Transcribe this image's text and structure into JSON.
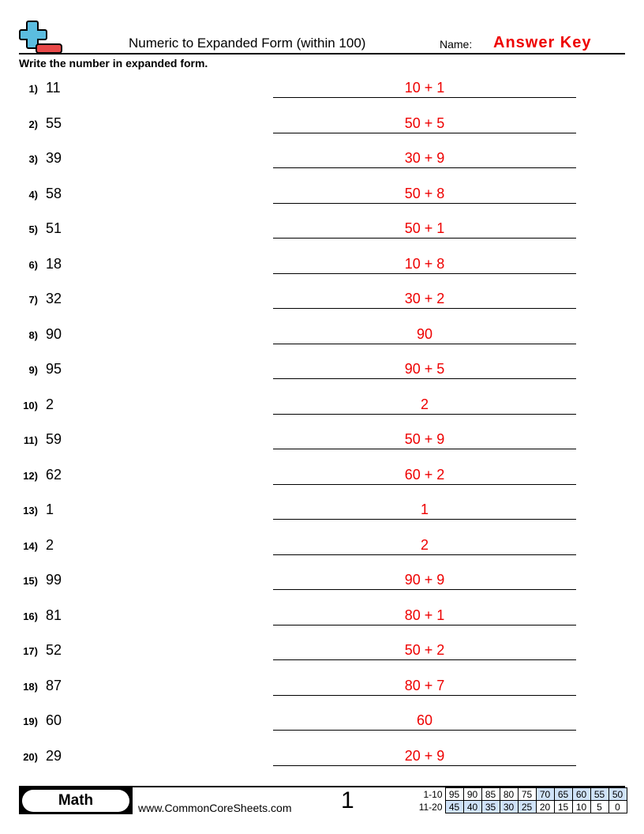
{
  "header": {
    "title": "Numeric to Expanded Form (within 100)",
    "name_label": "Name:",
    "answer_key": "Answer Key",
    "logo": "plus-minus-logo"
  },
  "instructions": "Write the number in expanded form.",
  "problems": [
    {
      "n": "1)",
      "q": "11",
      "a": "10 + 1"
    },
    {
      "n": "2)",
      "q": "55",
      "a": "50 + 5"
    },
    {
      "n": "3)",
      "q": "39",
      "a": "30 + 9"
    },
    {
      "n": "4)",
      "q": "58",
      "a": "50 + 8"
    },
    {
      "n": "5)",
      "q": "51",
      "a": "50 + 1"
    },
    {
      "n": "6)",
      "q": "18",
      "a": "10 + 8"
    },
    {
      "n": "7)",
      "q": "32",
      "a": "30 + 2"
    },
    {
      "n": "8)",
      "q": "90",
      "a": "90"
    },
    {
      "n": "9)",
      "q": "95",
      "a": "90 + 5"
    },
    {
      "n": "10)",
      "q": "2",
      "a": "2"
    },
    {
      "n": "11)",
      "q": "59",
      "a": "50 + 9"
    },
    {
      "n": "12)",
      "q": "62",
      "a": "60 + 2"
    },
    {
      "n": "13)",
      "q": "1",
      "a": "1"
    },
    {
      "n": "14)",
      "q": "2",
      "a": "2"
    },
    {
      "n": "15)",
      "q": "99",
      "a": "90 + 9"
    },
    {
      "n": "16)",
      "q": "81",
      "a": "80 + 1"
    },
    {
      "n": "17)",
      "q": "52",
      "a": "50 + 2"
    },
    {
      "n": "18)",
      "q": "87",
      "a": "80 + 7"
    },
    {
      "n": "19)",
      "q": "60",
      "a": "60"
    },
    {
      "n": "20)",
      "q": "29",
      "a": "20 + 9"
    }
  ],
  "footer": {
    "subject": "Math",
    "website": "www.CommonCoreSheets.com",
    "page": "1",
    "score_table": [
      {
        "label": "1-10",
        "cells": [
          "95",
          "90",
          "85",
          "80",
          "75",
          "70",
          "65",
          "60",
          "55",
          "50"
        ],
        "highlight": [
          false,
          false,
          false,
          false,
          false,
          true,
          true,
          true,
          true,
          true
        ]
      },
      {
        "label": "11-20",
        "cells": [
          "45",
          "40",
          "35",
          "30",
          "25",
          "20",
          "15",
          "10",
          "5",
          "0"
        ],
        "highlight": [
          true,
          true,
          true,
          true,
          true,
          false,
          false,
          false,
          false,
          false
        ]
      }
    ]
  },
  "colors": {
    "answer": "#ee0000",
    "logo_plus": "#5bbde0",
    "logo_minus": "#e84848",
    "highlight": "#cfe2f8"
  }
}
